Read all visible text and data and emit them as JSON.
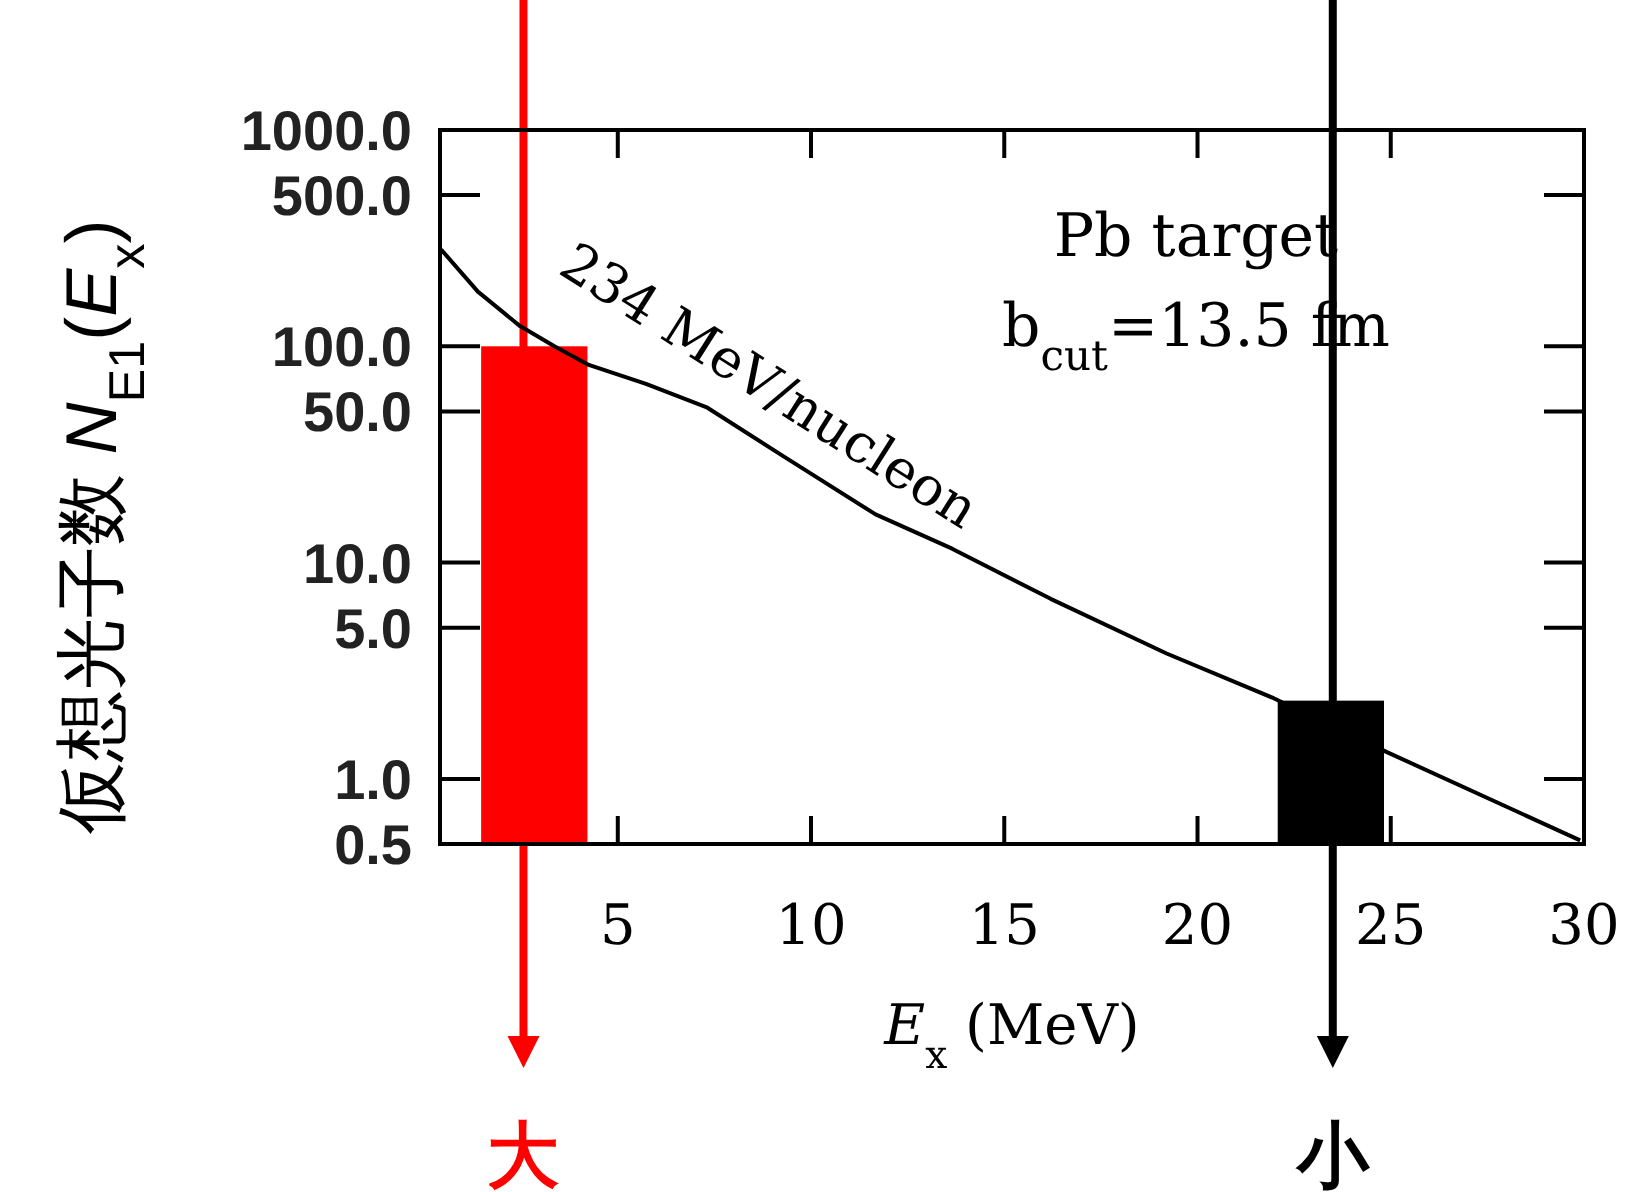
{
  "chart_data": {
    "type": "line",
    "xlabel": "*E*$_{x}$ (MeV)",
    "ylabel": "仮想光子数 *N*$_{E1}$(*E*$_{x}$)",
    "log": "y",
    "xlim": [
      0.4,
      30
    ],
    "xticks": [
      5,
      10,
      15,
      20,
      25,
      30
    ],
    "ylim": [
      0.5,
      1000
    ],
    "yticks": [
      {
        "value": 0.5,
        "label": "0.5"
      },
      {
        "value": 1,
        "label": "1.0"
      },
      {
        "value": 5,
        "label": "5.0"
      },
      {
        "value": 10,
        "label": "10.0"
      },
      {
        "value": 50,
        "label": "50.0"
      },
      {
        "value": 100,
        "label": "100.0"
      },
      {
        "value": 500,
        "label": "500.0"
      },
      {
        "value": 1000,
        "label": "1000.0"
      }
    ],
    "annotations": [
      "Pb target",
      "b$_{cut}$=13.5 fm"
    ],
    "ref_lines": [
      {
        "axis": "x",
        "value": 2.56,
        "label": "大",
        "color": "#ff0000"
      },
      {
        "axis": "x",
        "value": 23.5,
        "label": "小",
        "color": "#000000"
      }
    ],
    "series": [
      {
        "type": "bar",
        "x": [
          2.84,
          23.45
        ],
        "values": [
          100,
          2.3
        ],
        "colors": [
          "#ff0000",
          "#000000"
        ]
      },
      {
        "name": "234 MeV/nucleon",
        "color": "#000000",
        "x": [
          0.43,
          1.38,
          2.47,
          3.36,
          4.25,
          5.73,
          7.32,
          9.3,
          11.67,
          13.65,
          16.2,
          19.2,
          21.97,
          24.9,
          29.9
        ],
        "values": [
          280,
          179,
          124,
          100,
          82,
          67,
          52,
          30.9,
          16.7,
          11.6,
          6.8,
          3.8,
          2.36,
          1.33,
          0.52
        ]
      }
    ]
  }
}
